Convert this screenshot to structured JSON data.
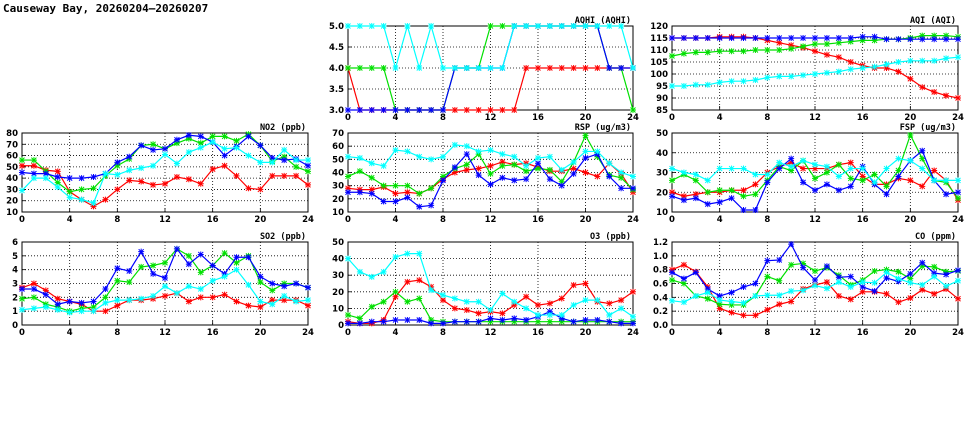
{
  "title": "Causeway Bay, 20260204—20260207",
  "series_colors": [
    "#ff0000",
    "#00e000",
    "#0000ff",
    "#00ffff"
  ],
  "chart_data": [
    {
      "type": "line",
      "title": "AQHI (AQHI)",
      "ylim": [
        3.0,
        5.0
      ],
      "yticks": [
        "3.0",
        "3.5",
        "4.0",
        "4.5",
        "5.0"
      ],
      "xlim": [
        0,
        24
      ],
      "xticks": [
        "0",
        "4",
        "8",
        "12",
        "16",
        "20",
        "24"
      ],
      "grid": true,
      "series": [
        {
          "values": [
            4,
            3,
            3,
            3,
            3,
            3,
            3,
            3,
            3,
            3,
            3,
            3,
            3,
            3,
            3,
            4,
            4,
            4,
            4,
            4,
            4,
            4,
            4,
            4,
            4
          ]
        },
        {
          "values": [
            4,
            4,
            4,
            4,
            3,
            3,
            3,
            3,
            3,
            4,
            4,
            4,
            5,
            5,
            5,
            5,
            5,
            5,
            5,
            5,
            5,
            5,
            4,
            4,
            3
          ]
        },
        {
          "values": [
            3,
            3,
            3,
            3,
            3,
            3,
            3,
            3,
            3,
            4,
            4,
            4,
            4,
            4,
            5,
            5,
            5,
            5,
            5,
            5,
            5,
            5,
            4,
            4,
            4
          ]
        },
        {
          "values": [
            5,
            5,
            5,
            5,
            4,
            5,
            4,
            5,
            4,
            4,
            4,
            4,
            4,
            4,
            5,
            5,
            5,
            5,
            5,
            5,
            5,
            5,
            5,
            5,
            4
          ]
        }
      ]
    },
    {
      "type": "line",
      "title": "AQI (AQI)",
      "ylim": [
        85,
        120
      ],
      "yticks": [
        "85",
        "90",
        "95",
        "100",
        "105",
        "110",
        "115",
        "120"
      ],
      "xlim": [
        0,
        24
      ],
      "xticks": [
        "0",
        "4",
        "8",
        "12",
        "16",
        "20",
        "24"
      ],
      "grid": true,
      "series": [
        {
          "values": [
            115,
            115,
            115,
            115,
            115.5,
            115.5,
            115.5,
            115,
            114,
            113,
            112,
            111,
            109.5,
            108,
            107,
            105,
            103.5,
            102.5,
            102.5,
            101,
            98,
            94.5,
            92.5,
            91,
            90
          ]
        },
        {
          "values": [
            107.5,
            108.5,
            109,
            109,
            109.5,
            109.5,
            109.5,
            110,
            110,
            110,
            110.5,
            111.5,
            112.5,
            112.5,
            113,
            113.5,
            114,
            114,
            114.5,
            114.5,
            115,
            116,
            116,
            116,
            115.5
          ]
        },
        {
          "values": [
            115,
            115,
            115,
            115,
            115,
            115,
            115,
            115,
            115,
            115,
            115,
            115,
            115,
            115,
            115,
            115,
            115.5,
            115.5,
            114.5,
            114.5,
            114.5,
            114.5,
            114.5,
            114.5,
            114.5
          ]
        },
        {
          "values": [
            95,
            95,
            95.5,
            95.5,
            96.5,
            97,
            97,
            97.5,
            98.5,
            99,
            99,
            99.5,
            100,
            100.5,
            101,
            102,
            102.5,
            103,
            104,
            105,
            105.5,
            105.5,
            105.5,
            106.5,
            107
          ]
        }
      ]
    },
    {
      "type": "line",
      "title": "NO2 (ppb)",
      "ylim": [
        10,
        80
      ],
      "yticks": [
        "10",
        "20",
        "30",
        "40",
        "50",
        "60",
        "70",
        "80"
      ],
      "xlim": [
        0,
        24
      ],
      "xticks": [
        "0",
        "4",
        "8",
        "12",
        "16",
        "20",
        "24"
      ],
      "grid": true,
      "series": [
        {
          "values": [
            51,
            51,
            47,
            46,
            28,
            21,
            15,
            21,
            30,
            38,
            37,
            34,
            35,
            41,
            39,
            35,
            48,
            51,
            42,
            31,
            30,
            42,
            42,
            42,
            34
          ]
        },
        {
          "values": [
            56,
            56,
            46,
            36,
            28,
            30,
            31,
            42,
            51,
            57,
            69,
            70,
            66,
            71,
            75,
            71,
            77,
            77,
            73,
            79,
            69,
            55,
            59,
            50,
            46
          ]
        },
        {
          "values": [
            45,
            44,
            44,
            41,
            40,
            40,
            41,
            44,
            54,
            59,
            69,
            65,
            66,
            74,
            78,
            77,
            72,
            60,
            68,
            77,
            69,
            58,
            56,
            57,
            51
          ]
        },
        {
          "values": [
            29,
            40,
            40,
            32,
            23,
            21,
            18,
            44,
            43,
            47,
            49,
            51,
            61,
            53,
            63,
            67,
            72,
            66,
            67,
            60,
            54,
            54,
            65,
            56,
            56
          ]
        }
      ]
    },
    {
      "type": "line",
      "title": "RSP (ug/m3)",
      "ylim": [
        10,
        70
      ],
      "yticks": [
        "10",
        "20",
        "30",
        "40",
        "50",
        "60",
        "70"
      ],
      "xlim": [
        0,
        24
      ],
      "xticks": [
        "0",
        "4",
        "8",
        "12",
        "16",
        "20",
        "24"
      ],
      "grid": true,
      "series": [
        {
          "values": [
            28,
            27,
            27,
            29,
            24,
            25,
            24,
            28,
            35,
            40,
            42,
            43,
            45,
            48,
            46,
            47,
            44,
            41,
            41,
            43,
            40,
            37,
            47,
            39,
            25
          ]
        },
        {
          "values": [
            37,
            41,
            36,
            30,
            30,
            30,
            24,
            28,
            37,
            43,
            46,
            54,
            39,
            45,
            46,
            41,
            43,
            42,
            33,
            48,
            68,
            52,
            38,
            36,
            27
          ]
        },
        {
          "values": [
            25,
            25,
            24,
            18,
            18,
            21,
            14,
            15,
            34,
            44,
            54,
            38,
            31,
            36,
            34,
            35,
            47,
            35,
            30,
            39,
            51,
            54,
            37,
            28,
            28
          ]
        },
        {
          "values": [
            52,
            51,
            47,
            45,
            57,
            56,
            52,
            50,
            52,
            61,
            60,
            56,
            57,
            54,
            52,
            45,
            51,
            52,
            42,
            48,
            56,
            56,
            47,
            40,
            37
          ]
        }
      ]
    },
    {
      "type": "line",
      "title": "FSP (ug/m3)",
      "ylim": [
        10,
        50
      ],
      "yticks": [
        "10",
        "20",
        "30",
        "40",
        "50"
      ],
      "xlim": [
        0,
        24
      ],
      "xticks": [
        "0",
        "4",
        "8",
        "12",
        "16",
        "20",
        "24"
      ],
      "grid": true,
      "series": [
        {
          "values": [
            20,
            18,
            19,
            20,
            20,
            21,
            21,
            24,
            30,
            33,
            35,
            32,
            32,
            32,
            34,
            35,
            28,
            24,
            24,
            27,
            26,
            23,
            31,
            26,
            16
          ]
        },
        {
          "values": [
            26,
            29,
            26,
            20,
            21,
            21,
            18,
            19,
            26,
            33,
            31,
            36,
            27,
            30,
            34,
            27,
            26,
            29,
            23,
            31,
            49,
            37,
            26,
            25,
            17
          ]
        },
        {
          "values": [
            18,
            16,
            17,
            14,
            15,
            17,
            11,
            11,
            25,
            32,
            37,
            25,
            21,
            24,
            21,
            23,
            33,
            24,
            19,
            28,
            36,
            41,
            26,
            19,
            20
          ]
        },
        {
          "values": [
            32,
            30,
            29,
            26,
            32,
            32,
            32,
            29,
            29,
            35,
            33,
            36,
            34,
            33,
            28,
            32,
            32,
            25,
            32,
            37,
            36,
            32,
            26,
            26,
            26
          ]
        }
      ]
    },
    {
      "type": "line",
      "title": "SO2 (ppb)",
      "ylim": [
        0,
        6
      ],
      "yticks": [
        "0",
        "1",
        "2",
        "3",
        "4",
        "5",
        "6"
      ],
      "xlim": [
        0,
        24
      ],
      "xticks": [
        "0",
        "4",
        "8",
        "12",
        "16",
        "20",
        "24"
      ],
      "grid": true,
      "series": [
        {
          "values": [
            2.7,
            3.0,
            2.5,
            1.9,
            1.7,
            1.5,
            1.0,
            1.0,
            1.4,
            1.8,
            1.8,
            1.9,
            2.1,
            2.3,
            1.7,
            2.0,
            2.0,
            2.2,
            1.7,
            1.4,
            1.3,
            1.8,
            1.8,
            1.8,
            1.4
          ]
        },
        {
          "values": [
            1.9,
            2.0,
            1.5,
            1.3,
            1.0,
            1.2,
            1.3,
            2.0,
            3.2,
            3.1,
            4.2,
            4.3,
            4.5,
            5.5,
            5.0,
            3.8,
            4.3,
            5.2,
            4.5,
            5.0,
            3.1,
            2.5,
            3.0,
            3.0,
            2.7
          ]
        },
        {
          "values": [
            2.6,
            2.6,
            2.2,
            1.5,
            1.7,
            1.6,
            1.7,
            2.6,
            4.1,
            3.9,
            5.3,
            3.7,
            3.4,
            5.5,
            4.4,
            5.1,
            4.3,
            3.7,
            4.9,
            4.9,
            3.5,
            3.0,
            2.8,
            3.0,
            2.7
          ]
        },
        {
          "values": [
            1.1,
            1.2,
            1.3,
            1.1,
            0.9,
            1.0,
            1.0,
            1.6,
            1.8,
            1.8,
            1.9,
            2.1,
            2.8,
            2.3,
            2.8,
            2.6,
            3.2,
            3.5,
            4.0,
            2.9,
            1.7,
            1.5,
            2.1,
            1.7,
            1.8
          ]
        }
      ]
    },
    {
      "type": "line",
      "title": "O3 (ppb)",
      "ylim": [
        0,
        50
      ],
      "yticks": [
        "0",
        "10",
        "20",
        "30",
        "40",
        "50"
      ],
      "xlim": [
        0,
        24
      ],
      "xticks": [
        "0",
        "4",
        "8",
        "12",
        "16",
        "20",
        "24"
      ],
      "grid": true,
      "series": [
        {
          "values": [
            2,
            1,
            1,
            3,
            17,
            26,
            27,
            23,
            15,
            10,
            9,
            7,
            8,
            7,
            12,
            17,
            12,
            13,
            16,
            24,
            25,
            14,
            13,
            15,
            20
          ]
        },
        {
          "values": [
            6,
            4,
            11,
            14,
            20,
            14,
            16,
            3,
            2,
            2,
            2,
            2,
            2,
            2,
            2,
            2,
            2,
            2,
            2,
            2,
            2,
            2,
            2,
            2,
            2
          ]
        },
        {
          "values": [
            1,
            1,
            2,
            2,
            3,
            3,
            3,
            1,
            1,
            2,
            2,
            2,
            4,
            3,
            4,
            3,
            5,
            8,
            4,
            2,
            3,
            3,
            2,
            1,
            1
          ]
        },
        {
          "values": [
            40,
            32,
            29,
            32,
            41,
            43,
            43,
            21,
            18,
            16,
            14,
            14,
            9,
            19,
            14,
            10,
            6,
            6,
            6,
            12,
            15,
            15,
            6,
            10,
            5
          ]
        }
      ]
    },
    {
      "type": "line",
      "title": "CO (ppm)",
      "ylim": [
        0,
        1.2
      ],
      "yticks": [
        "0.0",
        "0.2",
        "0.4",
        "0.6",
        "0.8",
        "1.0",
        "1.2"
      ],
      "xlim": [
        0,
        24
      ],
      "xticks": [
        "0",
        "4",
        "8",
        "12",
        "16",
        "20",
        "24"
      ],
      "grid": true,
      "series": [
        {
          "values": [
            0.8,
            0.87,
            0.77,
            0.55,
            0.24,
            0.18,
            0.14,
            0.14,
            0.22,
            0.3,
            0.34,
            0.52,
            0.58,
            0.62,
            0.42,
            0.37,
            0.48,
            0.48,
            0.45,
            0.33,
            0.39,
            0.51,
            0.45,
            0.52,
            0.38
          ]
        },
        {
          "values": [
            0.65,
            0.6,
            0.42,
            0.38,
            0.3,
            0.29,
            0.29,
            0.42,
            0.7,
            0.64,
            0.87,
            0.89,
            0.78,
            0.83,
            0.72,
            0.58,
            0.65,
            0.78,
            0.8,
            0.77,
            0.67,
            0.85,
            0.84,
            0.77,
            0.78
          ]
        },
        {
          "values": [
            0.76,
            0.67,
            0.76,
            0.52,
            0.42,
            0.47,
            0.55,
            0.6,
            0.93,
            0.94,
            1.17,
            0.83,
            0.65,
            0.85,
            0.69,
            0.7,
            0.55,
            0.49,
            0.68,
            0.63,
            0.74,
            0.9,
            0.75,
            0.73,
            0.79
          ]
        },
        {
          "values": [
            0.35,
            0.33,
            0.42,
            0.47,
            0.36,
            0.34,
            0.32,
            0.42,
            0.43,
            0.43,
            0.49,
            0.5,
            0.57,
            0.53,
            0.62,
            0.55,
            0.62,
            0.61,
            0.76,
            0.67,
            0.61,
            0.58,
            0.7,
            0.56,
            0.64
          ]
        }
      ]
    }
  ]
}
